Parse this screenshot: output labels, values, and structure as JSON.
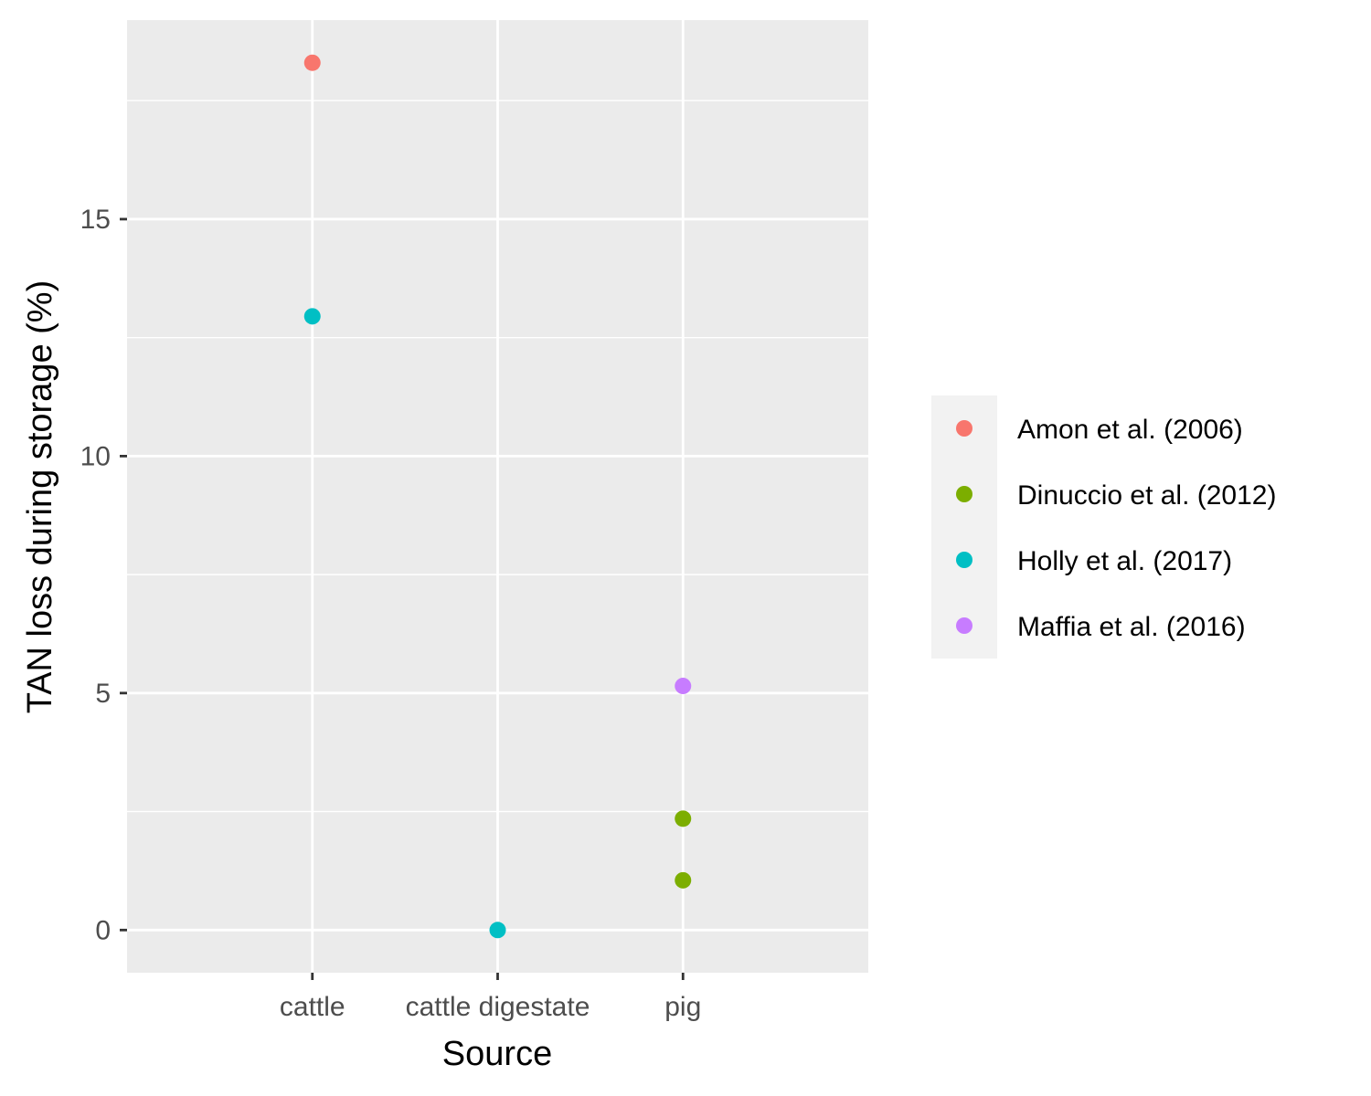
{
  "chart_data": {
    "type": "scatter",
    "title": "",
    "xlabel": "Source",
    "ylabel": "TAN loss during storage (%)",
    "categories": [
      "cattle",
      "cattle digestate",
      "pig"
    ],
    "ylim": [
      -0.9,
      19.2
    ],
    "yticks": [
      0,
      5,
      10,
      15
    ],
    "grid": true,
    "legend_position": "right",
    "series": [
      {
        "name": "Amon et al. (2006)",
        "color": "#F8766D",
        "points": [
          {
            "x": "cattle",
            "y": 18.3
          }
        ]
      },
      {
        "name": "Dinuccio et al. (2012)",
        "color": "#7CAE00",
        "points": [
          {
            "x": "pig",
            "y": 2.35
          },
          {
            "x": "pig",
            "y": 1.05
          }
        ]
      },
      {
        "name": "Holly et al. (2017)",
        "color": "#00BFC4",
        "points": [
          {
            "x": "cattle",
            "y": 12.95
          },
          {
            "x": "cattle digestate",
            "y": 0.0
          }
        ]
      },
      {
        "name": "Maffia et al. (2016)",
        "color": "#C77CFF",
        "points": [
          {
            "x": "pig",
            "y": 5.15
          }
        ]
      }
    ]
  },
  "colors": {
    "panel_background": "#EBEBEB",
    "grid": "#FFFFFF",
    "legend_key_background": "#F2F2F2",
    "tick": "#333333"
  }
}
